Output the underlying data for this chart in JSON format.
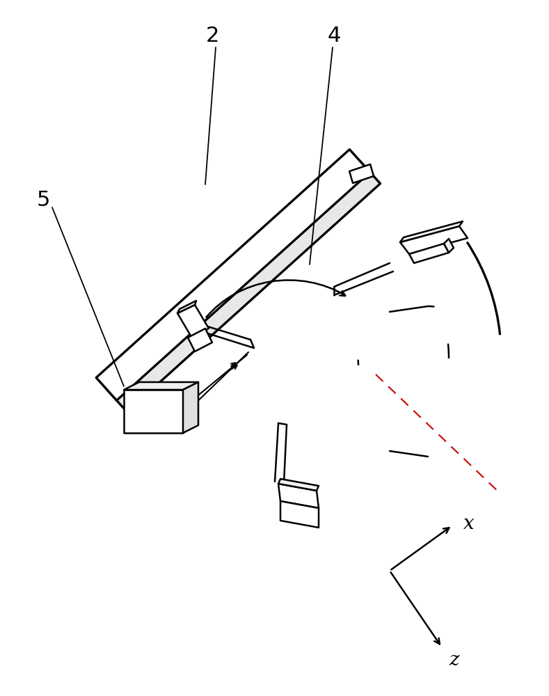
{
  "bg_color": "#ffffff",
  "line_color": "#000000",
  "red_dash_color": "#cc0000",
  "label_fontsize": 22,
  "axis_label_fontsize": 20,
  "figsize": [
    7.89,
    10.0
  ],
  "dpi": 100
}
